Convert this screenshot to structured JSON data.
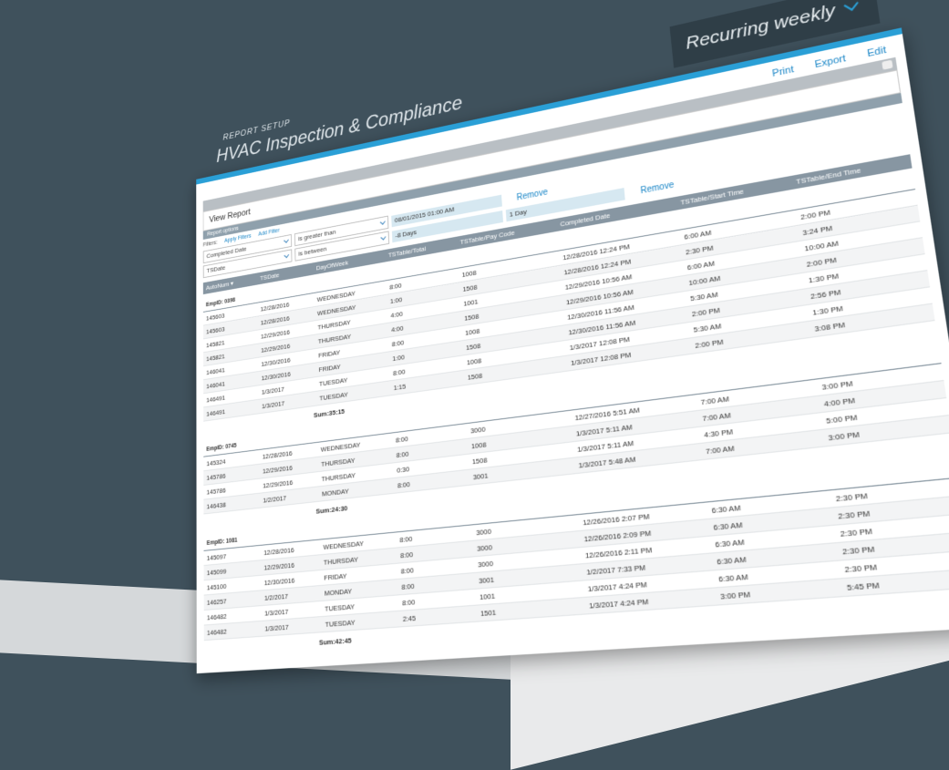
{
  "header": {
    "label": "REPORT SETUP",
    "title": "HVAC Inspection & Compliance",
    "schedule": "Recurring weekly"
  },
  "actions": [
    "Print",
    "Export",
    "Edit"
  ],
  "panel": {
    "title": "View Report",
    "options_label": "Report options",
    "filters_label": "Filters:",
    "apply": "Apply Filters",
    "add": "Add Filter",
    "filters": [
      {
        "field": "Completed Date",
        "operator": "is greater than",
        "values": [
          "08/01/2015 01:00 AM"
        ],
        "remove": "Remove"
      },
      {
        "field": "TSDate",
        "operator": "is between",
        "values": [
          "-8 Days",
          "1 Day"
        ],
        "remove": "Remove"
      }
    ]
  },
  "table": {
    "columns": [
      "AutoNum ▾",
      "TSDate",
      "DayOfWeek",
      "TSTable/Total",
      "TSTable/Pay Code",
      "Completed Date",
      "TSTable/Start Time",
      "TSTable/End Time"
    ],
    "groups": [
      {
        "label": "EmpID: 0398",
        "sum": "Sum:35:15",
        "rows": [
          [
            "145603",
            "12/28/2016",
            "WEDNESDAY",
            "8:00",
            "1008",
            "12/28/2016 12:24 PM",
            "6:00 AM",
            "2:00 PM"
          ],
          [
            "145603",
            "12/28/2016",
            "WEDNESDAY",
            "1:00",
            "1508",
            "12/28/2016 12:24 PM",
            "2:30 PM",
            "3:24 PM"
          ],
          [
            "145821",
            "12/29/2016",
            "THURSDAY",
            "4:00",
            "1001",
            "12/29/2016 10:56 AM",
            "6:00 AM",
            "10:00 AM"
          ],
          [
            "145821",
            "12/29/2016",
            "THURSDAY",
            "4:00",
            "1508",
            "12/29/2016 10:56 AM",
            "10:00 AM",
            "2:00 PM"
          ],
          [
            "146041",
            "12/30/2016",
            "FRIDAY",
            "8:00",
            "1008",
            "12/30/2016 11:56 AM",
            "5:30 AM",
            "1:30 PM"
          ],
          [
            "146041",
            "12/30/2016",
            "FRIDAY",
            "1:00",
            "1508",
            "12/30/2016 11:56 AM",
            "2:00 PM",
            "2:56 PM"
          ],
          [
            "146491",
            "1/3/2017",
            "TUESDAY",
            "8:00",
            "1008",
            "1/3/2017 12:08 PM",
            "5:30 AM",
            "1:30 PM"
          ],
          [
            "146491",
            "1/3/2017",
            "TUESDAY",
            "1:15",
            "1508",
            "1/3/2017 12:08 PM",
            "2:00 PM",
            "3:08 PM"
          ]
        ]
      },
      {
        "label": "EmpID: 0745",
        "sum": "Sum:24:30",
        "rows": [
          [
            "145324",
            "12/28/2016",
            "WEDNESDAY",
            "8:00",
            "3000",
            "12/27/2016 5:51 AM",
            "7:00 AM",
            "3:00 PM"
          ],
          [
            "145786",
            "12/29/2016",
            "THURSDAY",
            "8:00",
            "1008",
            "1/3/2017 5:11 AM",
            "7:00 AM",
            "4:00 PM"
          ],
          [
            "145786",
            "12/29/2016",
            "THURSDAY",
            "0:30",
            "1508",
            "1/3/2017 5:11 AM",
            "4:30 PM",
            "5:00 PM"
          ],
          [
            "146438",
            "1/2/2017",
            "MONDAY",
            "8:00",
            "3001",
            "1/3/2017 5:48 AM",
            "7:00 AM",
            "3:00 PM"
          ]
        ]
      },
      {
        "label": "EmpID: 1081",
        "sum": "Sum:42:45",
        "rows": [
          [
            "145097",
            "12/28/2016",
            "WEDNESDAY",
            "8:00",
            "3000",
            "12/26/2016 2:07 PM",
            "6:30 AM",
            "2:30 PM"
          ],
          [
            "145099",
            "12/29/2016",
            "THURSDAY",
            "8:00",
            "3000",
            "12/26/2016 2:09 PM",
            "6:30 AM",
            "2:30 PM"
          ],
          [
            "145100",
            "12/30/2016",
            "FRIDAY",
            "8:00",
            "3000",
            "12/26/2016 2:11 PM",
            "6:30 AM",
            "2:30 PM"
          ],
          [
            "146257",
            "1/2/2017",
            "MONDAY",
            "8:00",
            "3001",
            "1/2/2017 7:33 PM",
            "6:30 AM",
            "2:30 PM"
          ],
          [
            "146482",
            "1/3/2017",
            "TUESDAY",
            "8:00",
            "1001",
            "1/3/2017 4:24 PM",
            "6:30 AM",
            "2:30 PM"
          ],
          [
            "146482",
            "1/3/2017",
            "TUESDAY",
            "2:45",
            "1501",
            "1/3/2017 4:24 PM",
            "3:00 PM",
            "5:45 PM"
          ]
        ]
      }
    ]
  }
}
